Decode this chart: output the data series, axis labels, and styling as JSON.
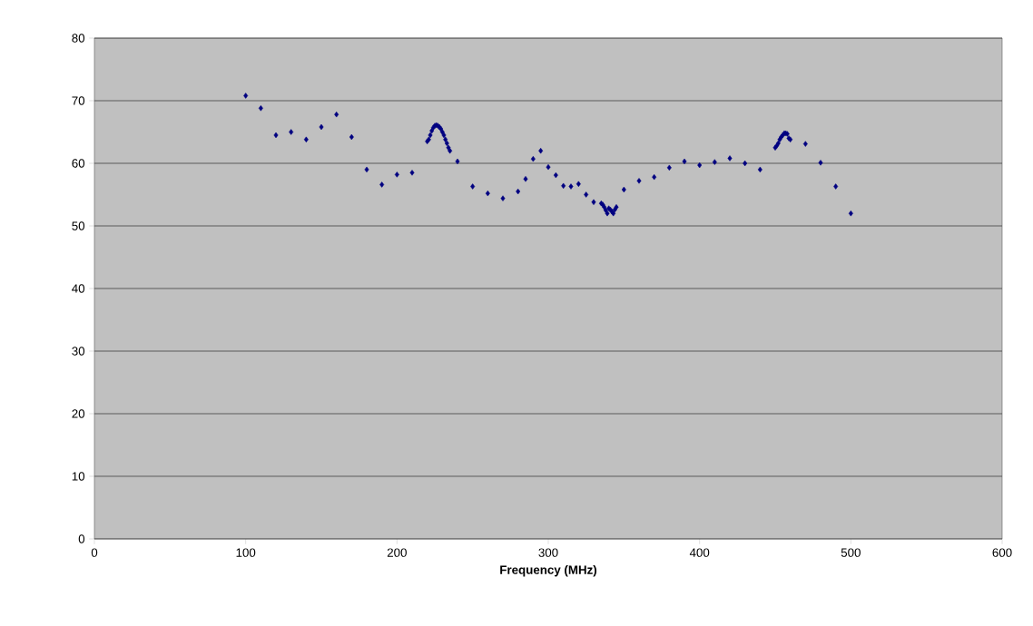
{
  "chart_data": {
    "type": "scatter",
    "xlabel": "Frequency (MHz)",
    "x": [
      100,
      110,
      120,
      130,
      140,
      150,
      160,
      170,
      180,
      190,
      200,
      210,
      220,
      221,
      222,
      223,
      224,
      225,
      226,
      227,
      228,
      229,
      230,
      231,
      232,
      233,
      234,
      235,
      240,
      250,
      260,
      270,
      280,
      285,
      290,
      295,
      300,
      305,
      310,
      315,
      320,
      325,
      330,
      335,
      336,
      337,
      338,
      339,
      340,
      341,
      342,
      343,
      344,
      345,
      350,
      360,
      370,
      380,
      390,
      400,
      410,
      420,
      430,
      440,
      450,
      451,
      452,
      453,
      454,
      455,
      456,
      457,
      458,
      459,
      460,
      470,
      480,
      490,
      500
    ],
    "values": [
      70.8,
      68.8,
      64.5,
      65.0,
      63.8,
      65.8,
      67.8,
      64.2,
      59.0,
      56.6,
      58.2,
      58.5,
      63.5,
      63.8,
      64.5,
      65.2,
      65.7,
      66.0,
      66.1,
      66.0,
      65.8,
      65.5,
      65.0,
      64.5,
      63.8,
      63.2,
      62.5,
      62.0,
      60.3,
      56.3,
      55.2,
      54.4,
      55.5,
      57.5,
      60.7,
      62.0,
      59.4,
      58.1,
      56.4,
      56.3,
      56.7,
      55.0,
      53.8,
      53.6,
      53.4,
      53.0,
      52.5,
      52.0,
      52.8,
      52.6,
      52.3,
      52.0,
      52.6,
      53.0,
      55.8,
      57.2,
      57.8,
      59.3,
      60.3,
      59.7,
      60.2,
      60.8,
      60.0,
      59.0,
      62.5,
      62.8,
      63.2,
      63.8,
      64.2,
      64.5,
      64.8,
      64.8,
      64.7,
      64.0,
      63.8,
      63.1,
      60.1,
      56.3,
      52.0
    ],
    "color": "#000080",
    "marker": "diamond",
    "grid": "y",
    "xlim": [
      0,
      600
    ],
    "xticks": [
      0,
      100,
      200,
      300,
      400,
      500,
      600
    ],
    "ylim": [
      0,
      80
    ],
    "yticks": [
      0,
      10,
      20,
      30,
      40,
      50,
      60,
      70,
      80
    ]
  }
}
